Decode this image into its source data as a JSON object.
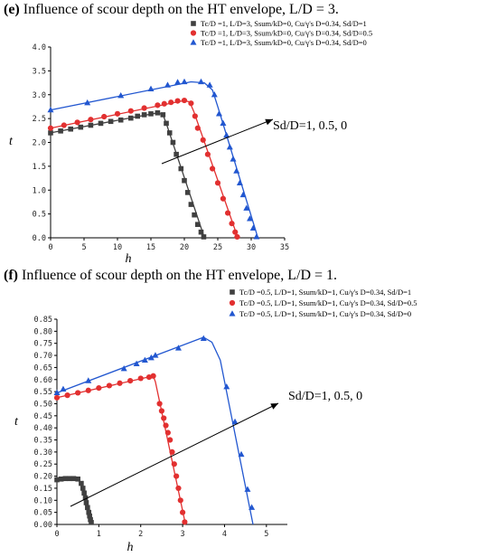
{
  "captions": {
    "e": {
      "label": "(e)",
      "text": " Influence of scour depth on the HT envelope, L/D = 3."
    },
    "f": {
      "label": "(f)",
      "text": " Influence of scour depth on the HT envelope, L/D = 1."
    }
  },
  "chart_data": [
    {
      "type": "line",
      "xlabel": "h",
      "ylabel": "t",
      "xlim": [
        0,
        35
      ],
      "ylim": [
        0,
        4.0
      ],
      "xticks": [
        "0",
        "5",
        "10",
        "15",
        "20",
        "25",
        "30",
        "35"
      ],
      "yticks": [
        "0.0",
        "0.5",
        "1.0",
        "1.5",
        "2.0",
        "2.5",
        "3.0",
        "3.5",
        "4.0"
      ],
      "annotation": "Sd/D=1, 0.5, 0",
      "legend_position": "top-right",
      "series": [
        {
          "name": "Tc/D =1, L/D=3, Ssum/kD=0, Cu/γ's D=0.34, Sd/D=1",
          "color": "#404040",
          "marker": "square",
          "points": [
            [
              0,
              2.2
            ],
            [
              1.5,
              2.24
            ],
            [
              3,
              2.28
            ],
            [
              4.5,
              2.32
            ],
            [
              6,
              2.36
            ],
            [
              7.5,
              2.4
            ],
            [
              9,
              2.44
            ],
            [
              10.5,
              2.47
            ],
            [
              12,
              2.51
            ],
            [
              13,
              2.55
            ],
            [
              14,
              2.58
            ],
            [
              15,
              2.6
            ],
            [
              16,
              2.62
            ],
            [
              16.8,
              2.58
            ],
            [
              17.3,
              2.4
            ],
            [
              17.8,
              2.2
            ],
            [
              18.3,
              2.0
            ],
            [
              18.8,
              1.75
            ],
            [
              19.5,
              1.45
            ],
            [
              20,
              1.2
            ],
            [
              20.5,
              0.95
            ],
            [
              21,
              0.7
            ],
            [
              21.5,
              0.48
            ],
            [
              22,
              0.28
            ],
            [
              22.5,
              0.12
            ],
            [
              22.9,
              0.02
            ]
          ],
          "curve": [
            [
              0,
              2.2
            ],
            [
              16,
              2.62
            ],
            [
              16.8,
              2.58
            ],
            [
              17.3,
              2.4
            ],
            [
              23,
              0
            ]
          ]
        },
        {
          "name": "Tc/D =1, L/D=3, Ssum/kD=0, Cu/γ's D=0.34, Sd/D=0.5",
          "color": "#e23030",
          "marker": "circle",
          "points": [
            [
              0,
              2.3
            ],
            [
              2,
              2.36
            ],
            [
              4,
              2.42
            ],
            [
              6,
              2.48
            ],
            [
              8,
              2.54
            ],
            [
              10,
              2.6
            ],
            [
              12,
              2.66
            ],
            [
              14,
              2.72
            ],
            [
              16,
              2.78
            ],
            [
              17,
              2.81
            ],
            [
              18,
              2.84
            ],
            [
              19,
              2.87
            ],
            [
              20,
              2.88
            ],
            [
              21,
              2.82
            ],
            [
              21.6,
              2.55
            ],
            [
              22,
              2.3
            ],
            [
              22.8,
              2.05
            ],
            [
              23.5,
              1.75
            ],
            [
              24.2,
              1.45
            ],
            [
              25,
              1.15
            ],
            [
              25.8,
              0.82
            ],
            [
              26.5,
              0.52
            ],
            [
              27.1,
              0.3
            ],
            [
              27.6,
              0.12
            ],
            [
              27.9,
              0.02
            ]
          ],
          "curve": [
            [
              0,
              2.3
            ],
            [
              20,
              2.88
            ],
            [
              20.8,
              2.85
            ],
            [
              21.4,
              2.65
            ],
            [
              28,
              0
            ]
          ]
        },
        {
          "name": "Tc/D =1, L/D=3, Ssum/kD=0, Cu/γ's D=0.34, Sd/D=0",
          "color": "#2257d0",
          "marker": "triangle",
          "points": [
            [
              0,
              2.68
            ],
            [
              5.5,
              2.83
            ],
            [
              10.5,
              2.98
            ],
            [
              15,
              3.12
            ],
            [
              17.5,
              3.2
            ],
            [
              19,
              3.26
            ],
            [
              20,
              3.27
            ],
            [
              22.5,
              3.27
            ],
            [
              23.8,
              3.2
            ],
            [
              24.5,
              3.0
            ],
            [
              25.2,
              2.6
            ],
            [
              25.8,
              2.4
            ],
            [
              26.3,
              2.15
            ],
            [
              26.8,
              1.9
            ],
            [
              27.3,
              1.65
            ],
            [
              27.8,
              1.4
            ],
            [
              28.3,
              1.15
            ],
            [
              28.8,
              0.9
            ],
            [
              29.3,
              0.62
            ],
            [
              29.8,
              0.4
            ],
            [
              30.3,
              0.2
            ],
            [
              30.8,
              0.02
            ]
          ],
          "curve": [
            [
              0,
              2.68
            ],
            [
              21,
              3.27
            ],
            [
              23,
              3.25
            ],
            [
              24.2,
              3.1
            ],
            [
              25,
              2.75
            ],
            [
              31,
              0
            ]
          ]
        }
      ]
    },
    {
      "type": "line",
      "xlabel": "h",
      "ylabel": "t",
      "xlim": [
        0,
        5.5
      ],
      "ylim": [
        0,
        0.85
      ],
      "xticks": [
        "0",
        "1",
        "2",
        "3",
        "4",
        "5"
      ],
      "yticks": [
        "0.00",
        "0.05",
        "0.10",
        "0.15",
        "0.20",
        "0.25",
        "0.30",
        "0.35",
        "0.40",
        "0.45",
        "0.50",
        "0.55",
        "0.60",
        "0.65",
        "0.70",
        "0.75",
        "0.80",
        "0.85"
      ],
      "annotation": "Sd/D=1, 0.5, 0",
      "legend_position": "top-right",
      "series": [
        {
          "name": "Tc/D =0.5, L/D=1, Ssum/kD=1, Cu/γ's D=0.34, Sd/D=1",
          "color": "#404040",
          "marker": "square",
          "points": [
            [
              0,
              0.185
            ],
            [
              0.1,
              0.188
            ],
            [
              0.2,
              0.19
            ],
            [
              0.3,
              0.19
            ],
            [
              0.4,
              0.19
            ],
            [
              0.5,
              0.188
            ],
            [
              0.58,
              0.17
            ],
            [
              0.62,
              0.15
            ],
            [
              0.65,
              0.13
            ],
            [
              0.68,
              0.11
            ],
            [
              0.7,
              0.09
            ],
            [
              0.73,
              0.07
            ],
            [
              0.76,
              0.05
            ],
            [
              0.78,
              0.035
            ],
            [
              0.8,
              0.02
            ],
            [
              0.82,
              0.008
            ]
          ],
          "curve": [
            [
              0,
              0.185
            ],
            [
              0.3,
              0.19
            ],
            [
              0.5,
              0.188
            ],
            [
              0.58,
              0.17
            ],
            [
              0.84,
              0
            ]
          ]
        },
        {
          "name": "Tc/D =0.5, L/D=1, Ssum/kD=1, Cu/γ's D=0.34, Sd/D=0.5",
          "color": "#e23030",
          "marker": "circle",
          "points": [
            [
              0,
              0.525
            ],
            [
              0.25,
              0.535
            ],
            [
              0.5,
              0.545
            ],
            [
              0.75,
              0.555
            ],
            [
              1.0,
              0.565
            ],
            [
              1.25,
              0.575
            ],
            [
              1.5,
              0.585
            ],
            [
              1.75,
              0.595
            ],
            [
              2.0,
              0.605
            ],
            [
              2.2,
              0.61
            ],
            [
              2.3,
              0.615
            ],
            [
              2.45,
              0.5
            ],
            [
              2.5,
              0.47
            ],
            [
              2.55,
              0.44
            ],
            [
              2.6,
              0.41
            ],
            [
              2.65,
              0.38
            ],
            [
              2.7,
              0.35
            ],
            [
              2.75,
              0.3
            ],
            [
              2.8,
              0.25
            ],
            [
              2.85,
              0.2
            ],
            [
              2.9,
              0.15
            ],
            [
              2.95,
              0.1
            ],
            [
              3.0,
              0.05
            ],
            [
              3.05,
              0.01
            ]
          ],
          "curve": [
            [
              0,
              0.525
            ],
            [
              2.3,
              0.615
            ],
            [
              2.35,
              0.59
            ],
            [
              3.07,
              0
            ]
          ]
        },
        {
          "name": "Tc/D =0.5, L/D=1, Ssum/kD=1, Cu/γ's D=0.34, Sd/D=0",
          "color": "#2257d0",
          "marker": "triangle",
          "points": [
            [
              0,
              0.545
            ],
            [
              0.15,
              0.56
            ],
            [
              0.75,
              0.595
            ],
            [
              1.6,
              0.645
            ],
            [
              1.9,
              0.665
            ],
            [
              2.1,
              0.68
            ],
            [
              2.25,
              0.69
            ],
            [
              2.35,
              0.7
            ],
            [
              2.9,
              0.73
            ],
            [
              3.5,
              0.77
            ],
            [
              4.05,
              0.57
            ],
            [
              4.25,
              0.425
            ],
            [
              4.4,
              0.29
            ],
            [
              4.55,
              0.145
            ],
            [
              4.65,
              0.07
            ]
          ],
          "curve": [
            [
              0,
              0.545
            ],
            [
              3.5,
              0.775
            ],
            [
              3.7,
              0.755
            ],
            [
              3.9,
              0.68
            ],
            [
              4.68,
              0
            ]
          ]
        }
      ]
    }
  ]
}
